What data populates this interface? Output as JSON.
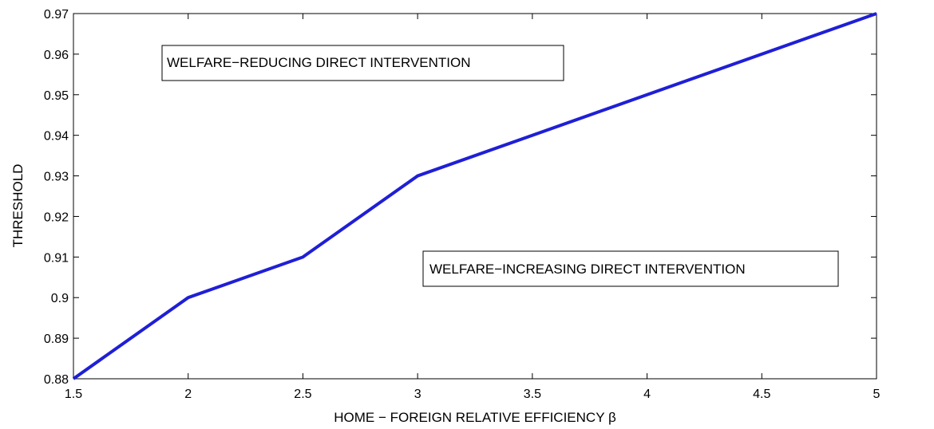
{
  "chart_data": {
    "type": "line",
    "x": [
      1.5,
      2,
      2.5,
      3,
      5
    ],
    "series": [
      {
        "values": [
          0.88,
          0.9,
          0.91,
          0.93,
          0.97
        ],
        "color": "#1f1fd6"
      }
    ],
    "xlabel": "HOME − FOREIGN RELATIVE EFFICIENCY β",
    "ylabel": "THRESHOLD",
    "xlim": [
      1.5,
      5
    ],
    "ylim": [
      0.88,
      0.97
    ],
    "xticks": [
      "1.5",
      "2",
      "2.5",
      "3",
      "3.5",
      "4",
      "4.5",
      "5"
    ],
    "yticks": [
      "0.88",
      "0.89",
      "0.9",
      "0.91",
      "0.92",
      "0.93",
      "0.94",
      "0.95",
      "0.96",
      "0.97"
    ],
    "grid": false,
    "annotations": [
      "WELFARE−REDUCING DIRECT INTERVENTION",
      "WELFARE−INCREASING DIRECT INTERVENTION"
    ]
  }
}
